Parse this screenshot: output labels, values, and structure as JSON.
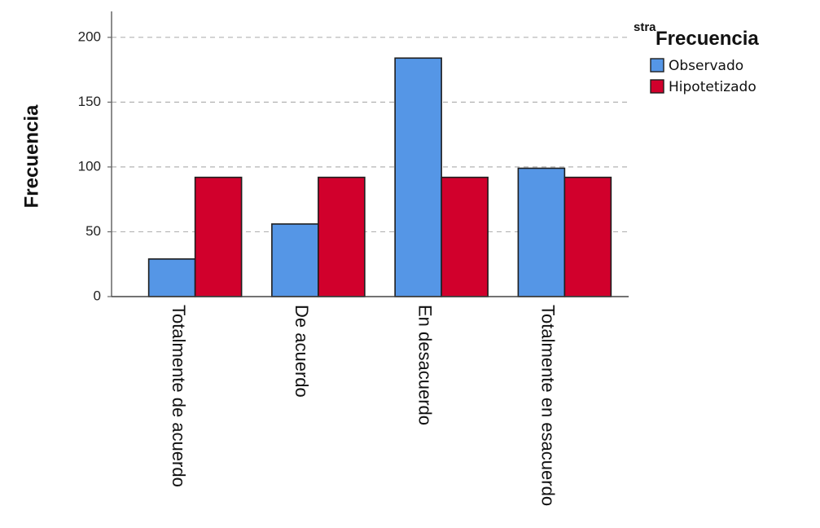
{
  "chart_data": {
    "type": "bar",
    "categories": [
      "Totalmente de acuerdo",
      "De acuerdo",
      "En desacuerdo",
      "Totalmente en esacuerdo"
    ],
    "series": [
      {
        "name": "Observado",
        "values": [
          29,
          56,
          184,
          99
        ],
        "color": "#5596e6"
      },
      {
        "name": "Hipotetizado",
        "values": [
          92,
          92,
          92,
          92
        ],
        "color": "#d1002c"
      }
    ],
    "ylabel": "Frecuencia",
    "xlabel": "",
    "ylim": [
      0,
      220
    ],
    "yticks": [
      0,
      50,
      100,
      150,
      200
    ],
    "grid": "horizontal dashed",
    "legend": {
      "title": "Frecuencia",
      "title_fragment": "stra",
      "position": "top-right"
    }
  }
}
